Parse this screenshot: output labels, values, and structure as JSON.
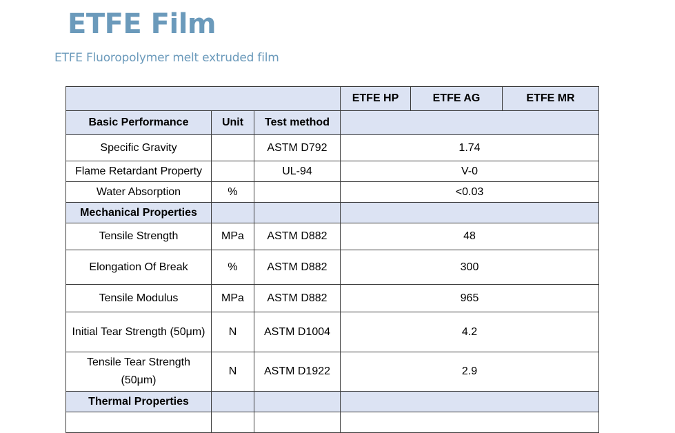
{
  "title": "ETFE Film",
  "subtitle": "ETFE Fluoropolymer melt extruded film",
  "products": [
    "ETFE HP",
    "ETFE AG",
    "ETFE MR"
  ],
  "columns": {
    "property": "Basic Performance",
    "unit": "Unit",
    "method": "Test method"
  },
  "rows": [
    {
      "property": "Specific Gravity",
      "unit": "",
      "method": "ASTM D792",
      "value": "1.74"
    },
    {
      "property": "Flame Retardant Property",
      "unit": "",
      "method": "UL-94",
      "value": "V-0"
    },
    {
      "property": "Water Absorption",
      "unit": "%",
      "method": "",
      "value": "<0.03"
    }
  ],
  "sections": [
    {
      "title": "Mechanical Properties"
    },
    {
      "title": "Thermal Properties"
    }
  ],
  "mechanical_rows": [
    {
      "property": "Tensile Strength",
      "unit": "MPa",
      "method": "ASTM D882",
      "value": "48"
    },
    {
      "property": "Elongation Of Break",
      "unit": "%",
      "method": "ASTM D882",
      "value": "300"
    },
    {
      "property": "Tensile Modulus",
      "unit": "MPa",
      "method": "ASTM D882",
      "value": "965"
    },
    {
      "property": "Initial Tear Strength (50μm)",
      "unit": "N",
      "method": "ASTM D1004",
      "value": "4.2"
    },
    {
      "property": "Tensile Tear Strength (50μm)",
      "unit": "N",
      "method": "ASTM D1922",
      "value": "2.9"
    }
  ]
}
